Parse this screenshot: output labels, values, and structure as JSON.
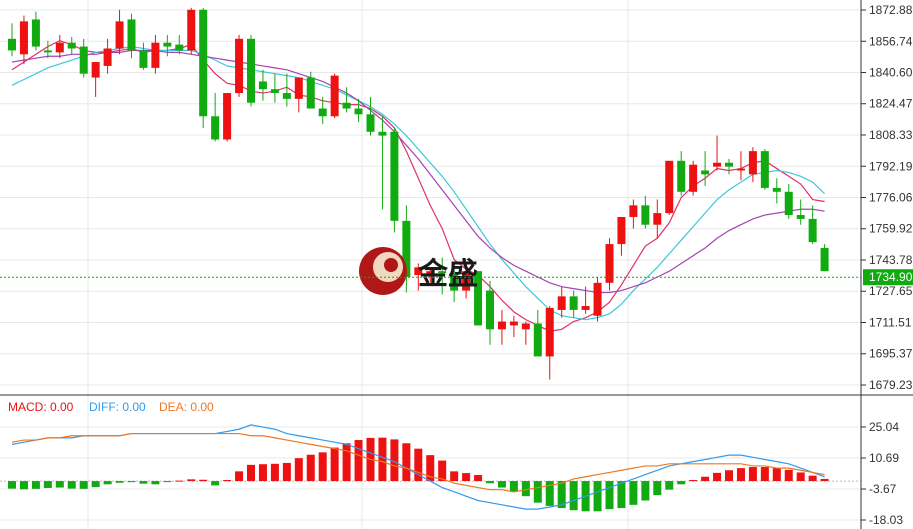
{
  "watermark": {
    "text": "金盛"
  },
  "price_marker": {
    "value": "1734.90",
    "color": "#11aa11"
  },
  "colors": {
    "up": "#ee1111",
    "down": "#11aa11",
    "ma_short": "#e0306a",
    "ma_mid": "#3cc8d8",
    "ma_long": "#a444b4",
    "diff": "#3399ee",
    "dea": "#ee7722",
    "grid": "#e8e8e8"
  },
  "chart_data": [
    {
      "type": "candlestick",
      "title": "",
      "y_ticks": [
        "1872.88",
        "1856.74",
        "1840.60",
        "1824.47",
        "1808.33",
        "1792.19",
        "1776.06",
        "1759.92",
        "1743.78",
        "1727.65",
        "1711.51",
        "1695.37",
        "1679.23"
      ],
      "ylim": [
        1675,
        1876
      ],
      "current_price": 1734.9,
      "ohlc": [
        [
          1858,
          1866,
          1849,
          1852
        ],
        [
          1850,
          1870,
          1845,
          1867
        ],
        [
          1868,
          1872,
          1852,
          1854
        ],
        [
          1852,
          1857,
          1848,
          1851
        ],
        [
          1851,
          1860,
          1848,
          1856
        ],
        [
          1856,
          1859,
          1850,
          1853
        ],
        [
          1854,
          1858,
          1838,
          1840
        ],
        [
          1838,
          1846,
          1828,
          1846
        ],
        [
          1844,
          1858,
          1840,
          1853
        ],
        [
          1853,
          1873,
          1850,
          1867
        ],
        [
          1868,
          1871,
          1848,
          1852
        ],
        [
          1852,
          1856,
          1842,
          1843
        ],
        [
          1843,
          1860,
          1840,
          1856
        ],
        [
          1856,
          1860,
          1849,
          1854
        ],
        [
          1855,
          1860,
          1850,
          1852
        ],
        [
          1852,
          1874,
          1850,
          1873
        ],
        [
          1873,
          1874,
          1812,
          1818
        ],
        [
          1818,
          1830,
          1805,
          1806
        ],
        [
          1806,
          1830,
          1805,
          1830
        ],
        [
          1830,
          1860,
          1828,
          1858
        ],
        [
          1858,
          1860,
          1823,
          1825
        ],
        [
          1836,
          1842,
          1826,
          1832
        ],
        [
          1832,
          1840,
          1825,
          1830
        ],
        [
          1830,
          1840,
          1823,
          1827
        ],
        [
          1827,
          1837,
          1820,
          1838
        ],
        [
          1838,
          1841,
          1822,
          1822
        ],
        [
          1822,
          1828,
          1814,
          1818
        ],
        [
          1818,
          1840,
          1817,
          1839
        ],
        [
          1825,
          1833,
          1820,
          1822
        ],
        [
          1822,
          1827,
          1815,
          1819
        ],
        [
          1819,
          1828,
          1808,
          1810
        ],
        [
          1810,
          1818,
          1770,
          1808
        ],
        [
          1810,
          1812,
          1758,
          1764
        ],
        [
          1764,
          1772,
          1727,
          1735
        ],
        [
          1736,
          1742,
          1728,
          1740
        ],
        [
          1736,
          1740,
          1732,
          1738
        ],
        [
          1738,
          1745,
          1726,
          1737
        ],
        [
          1737,
          1740,
          1722,
          1728
        ],
        [
          1728,
          1742,
          1724,
          1738
        ],
        [
          1738,
          1738,
          1710,
          1710
        ],
        [
          1728,
          1733,
          1700,
          1708
        ],
        [
          1708,
          1718,
          1700,
          1712
        ],
        [
          1710,
          1715,
          1704,
          1712
        ],
        [
          1708,
          1712,
          1700,
          1711
        ],
        [
          1711,
          1718,
          1696,
          1694
        ],
        [
          1694,
          1720,
          1682,
          1719
        ],
        [
          1718,
          1730,
          1714,
          1725
        ],
        [
          1725,
          1728,
          1714,
          1718
        ],
        [
          1718,
          1730,
          1716,
          1720
        ],
        [
          1715,
          1735,
          1712,
          1732
        ],
        [
          1732,
          1755,
          1728,
          1752
        ],
        [
          1752,
          1765,
          1746,
          1766
        ],
        [
          1766,
          1775,
          1760,
          1772
        ],
        [
          1772,
          1777,
          1760,
          1762
        ],
        [
          1762,
          1775,
          1755,
          1768
        ],
        [
          1768,
          1795,
          1767,
          1795
        ],
        [
          1795,
          1800,
          1777,
          1779
        ],
        [
          1779,
          1795,
          1777,
          1793
        ],
        [
          1790,
          1800,
          1782,
          1788
        ],
        [
          1792,
          1808,
          1790,
          1794
        ],
        [
          1794,
          1796,
          1788,
          1792
        ],
        [
          1790,
          1800,
          1785,
          1791
        ],
        [
          1788,
          1802,
          1784,
          1800
        ],
        [
          1800,
          1801,
          1780,
          1781
        ],
        [
          1781,
          1786,
          1773,
          1779
        ],
        [
          1779,
          1783,
          1765,
          1767
        ],
        [
          1767,
          1775,
          1762,
          1765
        ],
        [
          1765,
          1772,
          1752,
          1753
        ],
        [
          1750,
          1752,
          1738,
          1738
        ]
      ],
      "moving_averages": [
        {
          "period": 5,
          "color": "#e0306a",
          "values": [
            1842,
            1846,
            1850,
            1854,
            1857,
            1855,
            1852,
            1851,
            1851,
            1852,
            1853,
            1851,
            1852,
            1852,
            1853,
            1855,
            1847,
            1840,
            1835,
            1834,
            1831,
            1830,
            1831,
            1833,
            1829,
            1828,
            1826,
            1825,
            1824,
            1824,
            1822,
            1818,
            1812,
            1800,
            1786,
            1772,
            1760,
            1744,
            1739,
            1736,
            1730,
            1723,
            1717,
            1713,
            1710,
            1707,
            1708,
            1712,
            1714,
            1717,
            1722,
            1731,
            1741,
            1751,
            1755,
            1763,
            1776,
            1782,
            1786,
            1791,
            1790,
            1791,
            1794,
            1795,
            1791,
            1787,
            1783,
            1775,
            1774
          ]
        },
        {
          "period": 10,
          "color": "#3cc8d8",
          "values": [
            1834,
            1837,
            1840,
            1843,
            1845,
            1847,
            1849,
            1851,
            1852,
            1853,
            1854,
            1853,
            1852,
            1852,
            1852,
            1852,
            1850,
            1847,
            1844,
            1843,
            1842,
            1841,
            1840,
            1839,
            1838,
            1836,
            1834,
            1832,
            1829,
            1826,
            1823,
            1819,
            1814,
            1808,
            1801,
            1794,
            1787,
            1779,
            1770,
            1761,
            1752,
            1744,
            1737,
            1730,
            1724,
            1718,
            1715,
            1714,
            1713,
            1714,
            1716,
            1721,
            1728,
            1734,
            1740,
            1747,
            1754,
            1761,
            1768,
            1775,
            1780,
            1784,
            1788,
            1789,
            1790,
            1789,
            1787,
            1784,
            1778
          ]
        },
        {
          "period": 20,
          "color": "#a444b4",
          "values": [
            1846,
            1847,
            1848,
            1849,
            1849,
            1850,
            1850,
            1850,
            1851,
            1851,
            1852,
            1852,
            1852,
            1851,
            1851,
            1850,
            1849,
            1848,
            1847,
            1846,
            1845,
            1844,
            1843,
            1842,
            1840,
            1838,
            1836,
            1833,
            1830,
            1826,
            1821,
            1816,
            1810,
            1803,
            1796,
            1788,
            1780,
            1772,
            1764,
            1756,
            1750,
            1745,
            1741,
            1738,
            1735,
            1732,
            1730,
            1729,
            1728,
            1727,
            1727,
            1728,
            1730,
            1732,
            1735,
            1738,
            1742,
            1746,
            1750,
            1755,
            1759,
            1762,
            1765,
            1767,
            1768,
            1769,
            1770,
            1770,
            1769
          ]
        }
      ]
    },
    {
      "type": "bar",
      "title": "",
      "legend": [
        {
          "label": "MACD: 0.00",
          "color": "#ee1111"
        },
        {
          "label": "DIFF: 0.00",
          "color": "#3399ee"
        },
        {
          "label": "DEA: 0.00",
          "color": "#ee7722"
        }
      ],
      "y_ticks": [
        "25.04",
        "10.69",
        "-3.67",
        "-18.03"
      ],
      "ylim": [
        -18.03,
        31
      ],
      "macd": [
        -3.5,
        -3.8,
        -3.6,
        -3.2,
        -3.0,
        -3.5,
        -3.6,
        -2.8,
        -1.5,
        -0.8,
        -0.5,
        -1.2,
        -1.5,
        -0.3,
        0.2,
        0.8,
        0.6,
        -2.0,
        0.5,
        4.5,
        7.5,
        7.8,
        8.0,
        8.4,
        10.6,
        12.2,
        13.3,
        15.5,
        17.5,
        19.0,
        20.0,
        20.1,
        19.3,
        17.5,
        15.0,
        12.0,
        9.5,
        4.5,
        3.7,
        2.8,
        -1.0,
        -3.0,
        -5.0,
        -7.0,
        -10.0,
        -11.5,
        -12.5,
        -13.5,
        -14.0,
        -14.0,
        -13.0,
        -12.5,
        -11.0,
        -9.0,
        -6.5,
        -4.0,
        -1.5,
        0.5,
        2.0,
        3.8,
        5.0,
        6.0,
        6.5,
        6.5,
        6.0,
        5.2,
        4.0,
        2.5,
        1.0
      ],
      "diff": [
        17,
        18,
        19,
        20,
        20,
        20,
        21,
        21,
        21,
        21,
        22,
        22,
        22,
        22,
        22,
        22,
        22,
        22,
        23,
        24,
        26,
        25,
        24,
        22,
        21,
        20,
        19,
        18,
        17,
        15,
        13,
        11,
        9,
        6,
        3,
        0,
        -3,
        -5,
        -7,
        -9,
        -10,
        -11,
        -12,
        -13,
        -13,
        -12,
        -11,
        -9,
        -7,
        -5,
        -3,
        -1,
        1,
        3,
        5,
        7,
        8,
        9,
        10,
        11,
        12,
        12,
        11,
        10,
        9,
        8,
        6,
        4,
        2
      ],
      "dea": [
        18,
        19,
        19,
        20,
        20,
        21,
        21,
        21,
        21,
        21,
        22,
        22,
        22,
        22,
        22,
        22,
        22,
        22,
        22,
        22,
        21,
        21,
        20,
        19,
        18,
        17,
        16,
        15,
        14,
        12,
        10,
        9,
        7,
        6,
        4,
        2,
        1,
        -1,
        -2,
        -3,
        -4,
        -4,
        -5,
        -4,
        -3,
        -2,
        -1,
        1,
        2,
        3,
        4,
        5,
        6,
        7,
        7,
        8,
        8,
        8,
        8,
        8,
        8,
        8,
        7,
        7,
        6,
        6,
        5,
        4,
        3
      ]
    }
  ]
}
